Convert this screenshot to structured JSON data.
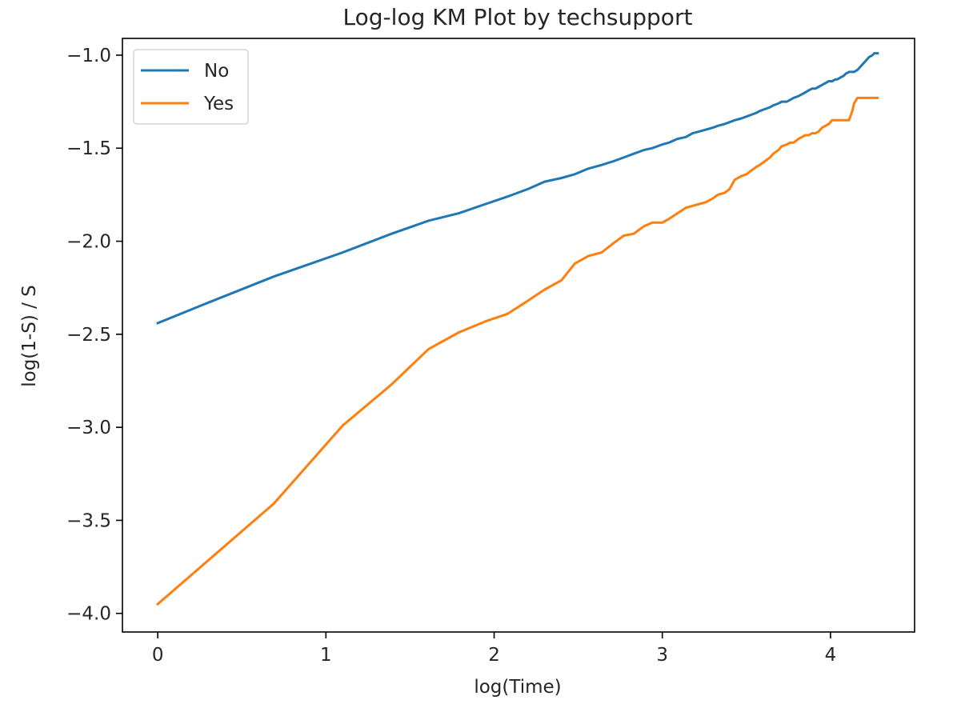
{
  "chart_data": {
    "type": "line",
    "title": "Log-log KM Plot by techsupport",
    "xlabel": "log(Time)",
    "ylabel": "log(1-S) / S",
    "xlim": [
      -0.21,
      4.5
    ],
    "ylim": [
      -4.1,
      -0.91
    ],
    "xticks": [
      0,
      1,
      2,
      3,
      4
    ],
    "xtick_labels": [
      "0",
      "1",
      "2",
      "3",
      "4"
    ],
    "yticks": [
      -1.0,
      -1.5,
      -2.0,
      -2.5,
      -3.0,
      -3.5,
      -4.0
    ],
    "ytick_labels": [
      "−1.0",
      "−1.5",
      "−2.0",
      "−2.5",
      "−3.0",
      "−3.5",
      "−4.0"
    ],
    "grid": false,
    "legend": "top-left",
    "series": [
      {
        "name": "No",
        "color": "#1f77b4",
        "x": [
          0,
          0.3,
          0.69,
          1.1,
          1.39,
          1.61,
          1.79,
          1.95,
          2.08,
          2.2,
          2.3,
          2.4,
          2.48,
          2.56,
          2.64,
          2.71,
          2.77,
          2.83,
          2.89,
          2.94,
          3.0,
          3.04,
          3.09,
          3.14,
          3.18,
          3.22,
          3.26,
          3.3,
          3.33,
          3.37,
          3.4,
          3.43,
          3.47,
          3.5,
          3.53,
          3.56,
          3.58,
          3.61,
          3.64,
          3.66,
          3.69,
          3.71,
          3.74,
          3.76,
          3.78,
          3.81,
          3.83,
          3.85,
          3.87,
          3.89,
          3.91,
          3.93,
          3.95,
          3.97,
          3.99,
          4.01,
          4.03,
          4.04,
          4.06,
          4.08,
          4.09,
          4.11,
          4.13,
          4.14,
          4.16,
          4.17,
          4.19,
          4.2,
          4.22,
          4.23,
          4.25,
          4.26,
          4.28
        ],
        "y": [
          -2.44,
          -2.33,
          -2.19,
          -2.06,
          -1.96,
          -1.89,
          -1.85,
          -1.8,
          -1.76,
          -1.72,
          -1.68,
          -1.66,
          -1.64,
          -1.61,
          -1.59,
          -1.57,
          -1.55,
          -1.53,
          -1.51,
          -1.5,
          -1.48,
          -1.47,
          -1.45,
          -1.44,
          -1.42,
          -1.41,
          -1.4,
          -1.39,
          -1.38,
          -1.37,
          -1.36,
          -1.35,
          -1.34,
          -1.33,
          -1.32,
          -1.31,
          -1.3,
          -1.29,
          -1.28,
          -1.27,
          -1.26,
          -1.25,
          -1.25,
          -1.24,
          -1.23,
          -1.22,
          -1.21,
          -1.2,
          -1.19,
          -1.18,
          -1.18,
          -1.17,
          -1.16,
          -1.15,
          -1.14,
          -1.14,
          -1.13,
          -1.13,
          -1.12,
          -1.11,
          -1.1,
          -1.09,
          -1.09,
          -1.09,
          -1.08,
          -1.07,
          -1.05,
          -1.04,
          -1.02,
          -1.01,
          -1.0,
          -0.99,
          -0.99
        ]
      },
      {
        "name": "Yes",
        "color": "#ff7f0e",
        "x": [
          0,
          0.69,
          1.1,
          1.39,
          1.61,
          1.79,
          1.95,
          2.08,
          2.2,
          2.3,
          2.4,
          2.48,
          2.56,
          2.64,
          2.71,
          2.77,
          2.83,
          2.89,
          2.94,
          3.0,
          3.04,
          3.09,
          3.14,
          3.18,
          3.22,
          3.26,
          3.3,
          3.33,
          3.37,
          3.4,
          3.43,
          3.47,
          3.5,
          3.53,
          3.56,
          3.58,
          3.61,
          3.64,
          3.66,
          3.69,
          3.71,
          3.74,
          3.76,
          3.78,
          3.81,
          3.83,
          3.85,
          3.87,
          3.89,
          3.91,
          3.93,
          3.95,
          3.97,
          3.99,
          4.01,
          4.03,
          4.04,
          4.06,
          4.08,
          4.09,
          4.11,
          4.13,
          4.14,
          4.16,
          4.17,
          4.19,
          4.2,
          4.22,
          4.28
        ],
        "y": [
          -3.95,
          -3.41,
          -2.99,
          -2.77,
          -2.58,
          -2.49,
          -2.43,
          -2.39,
          -2.32,
          -2.26,
          -2.21,
          -2.12,
          -2.08,
          -2.06,
          -2.01,
          -1.97,
          -1.96,
          -1.92,
          -1.9,
          -1.9,
          -1.88,
          -1.85,
          -1.82,
          -1.81,
          -1.8,
          -1.79,
          -1.77,
          -1.75,
          -1.74,
          -1.72,
          -1.67,
          -1.65,
          -1.64,
          -1.62,
          -1.6,
          -1.59,
          -1.57,
          -1.55,
          -1.53,
          -1.51,
          -1.49,
          -1.48,
          -1.47,
          -1.47,
          -1.45,
          -1.44,
          -1.43,
          -1.43,
          -1.42,
          -1.42,
          -1.41,
          -1.39,
          -1.38,
          -1.37,
          -1.35,
          -1.35,
          -1.35,
          -1.35,
          -1.35,
          -1.35,
          -1.35,
          -1.3,
          -1.26,
          -1.23,
          -1.23,
          -1.23,
          -1.23,
          -1.23,
          -1.23
        ]
      }
    ]
  }
}
